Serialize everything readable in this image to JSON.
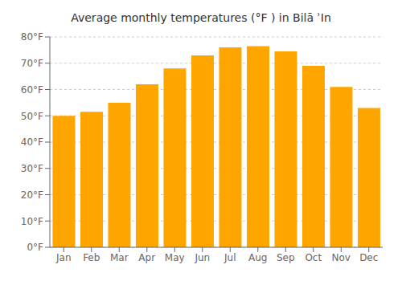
{
  "chart_data": {
    "type": "bar",
    "title": "Average monthly temperatures (°F ) in Bilā ʾIn",
    "categories": [
      "Jan",
      "Feb",
      "Mar",
      "Apr",
      "May",
      "Jun",
      "Jul",
      "Aug",
      "Sep",
      "Oct",
      "Nov",
      "Dec"
    ],
    "values": [
      50,
      51.5,
      55,
      62,
      68,
      73,
      76,
      76.5,
      74.5,
      69,
      61,
      53
    ],
    "color": "#FFA500",
    "ylim": [
      0,
      80
    ],
    "yticks": [
      {
        "value": 0,
        "label": "0°F"
      },
      {
        "value": 10,
        "label": "10°F"
      },
      {
        "value": 20,
        "label": "20°F"
      },
      {
        "value": 30,
        "label": "30°F"
      },
      {
        "value": 40,
        "label": "40°F"
      },
      {
        "value": 50,
        "label": "50°F"
      },
      {
        "value": 60,
        "label": "60°F"
      },
      {
        "value": 70,
        "label": "70°F"
      },
      {
        "value": 80,
        "label": "80°F"
      }
    ],
    "grid": true
  }
}
